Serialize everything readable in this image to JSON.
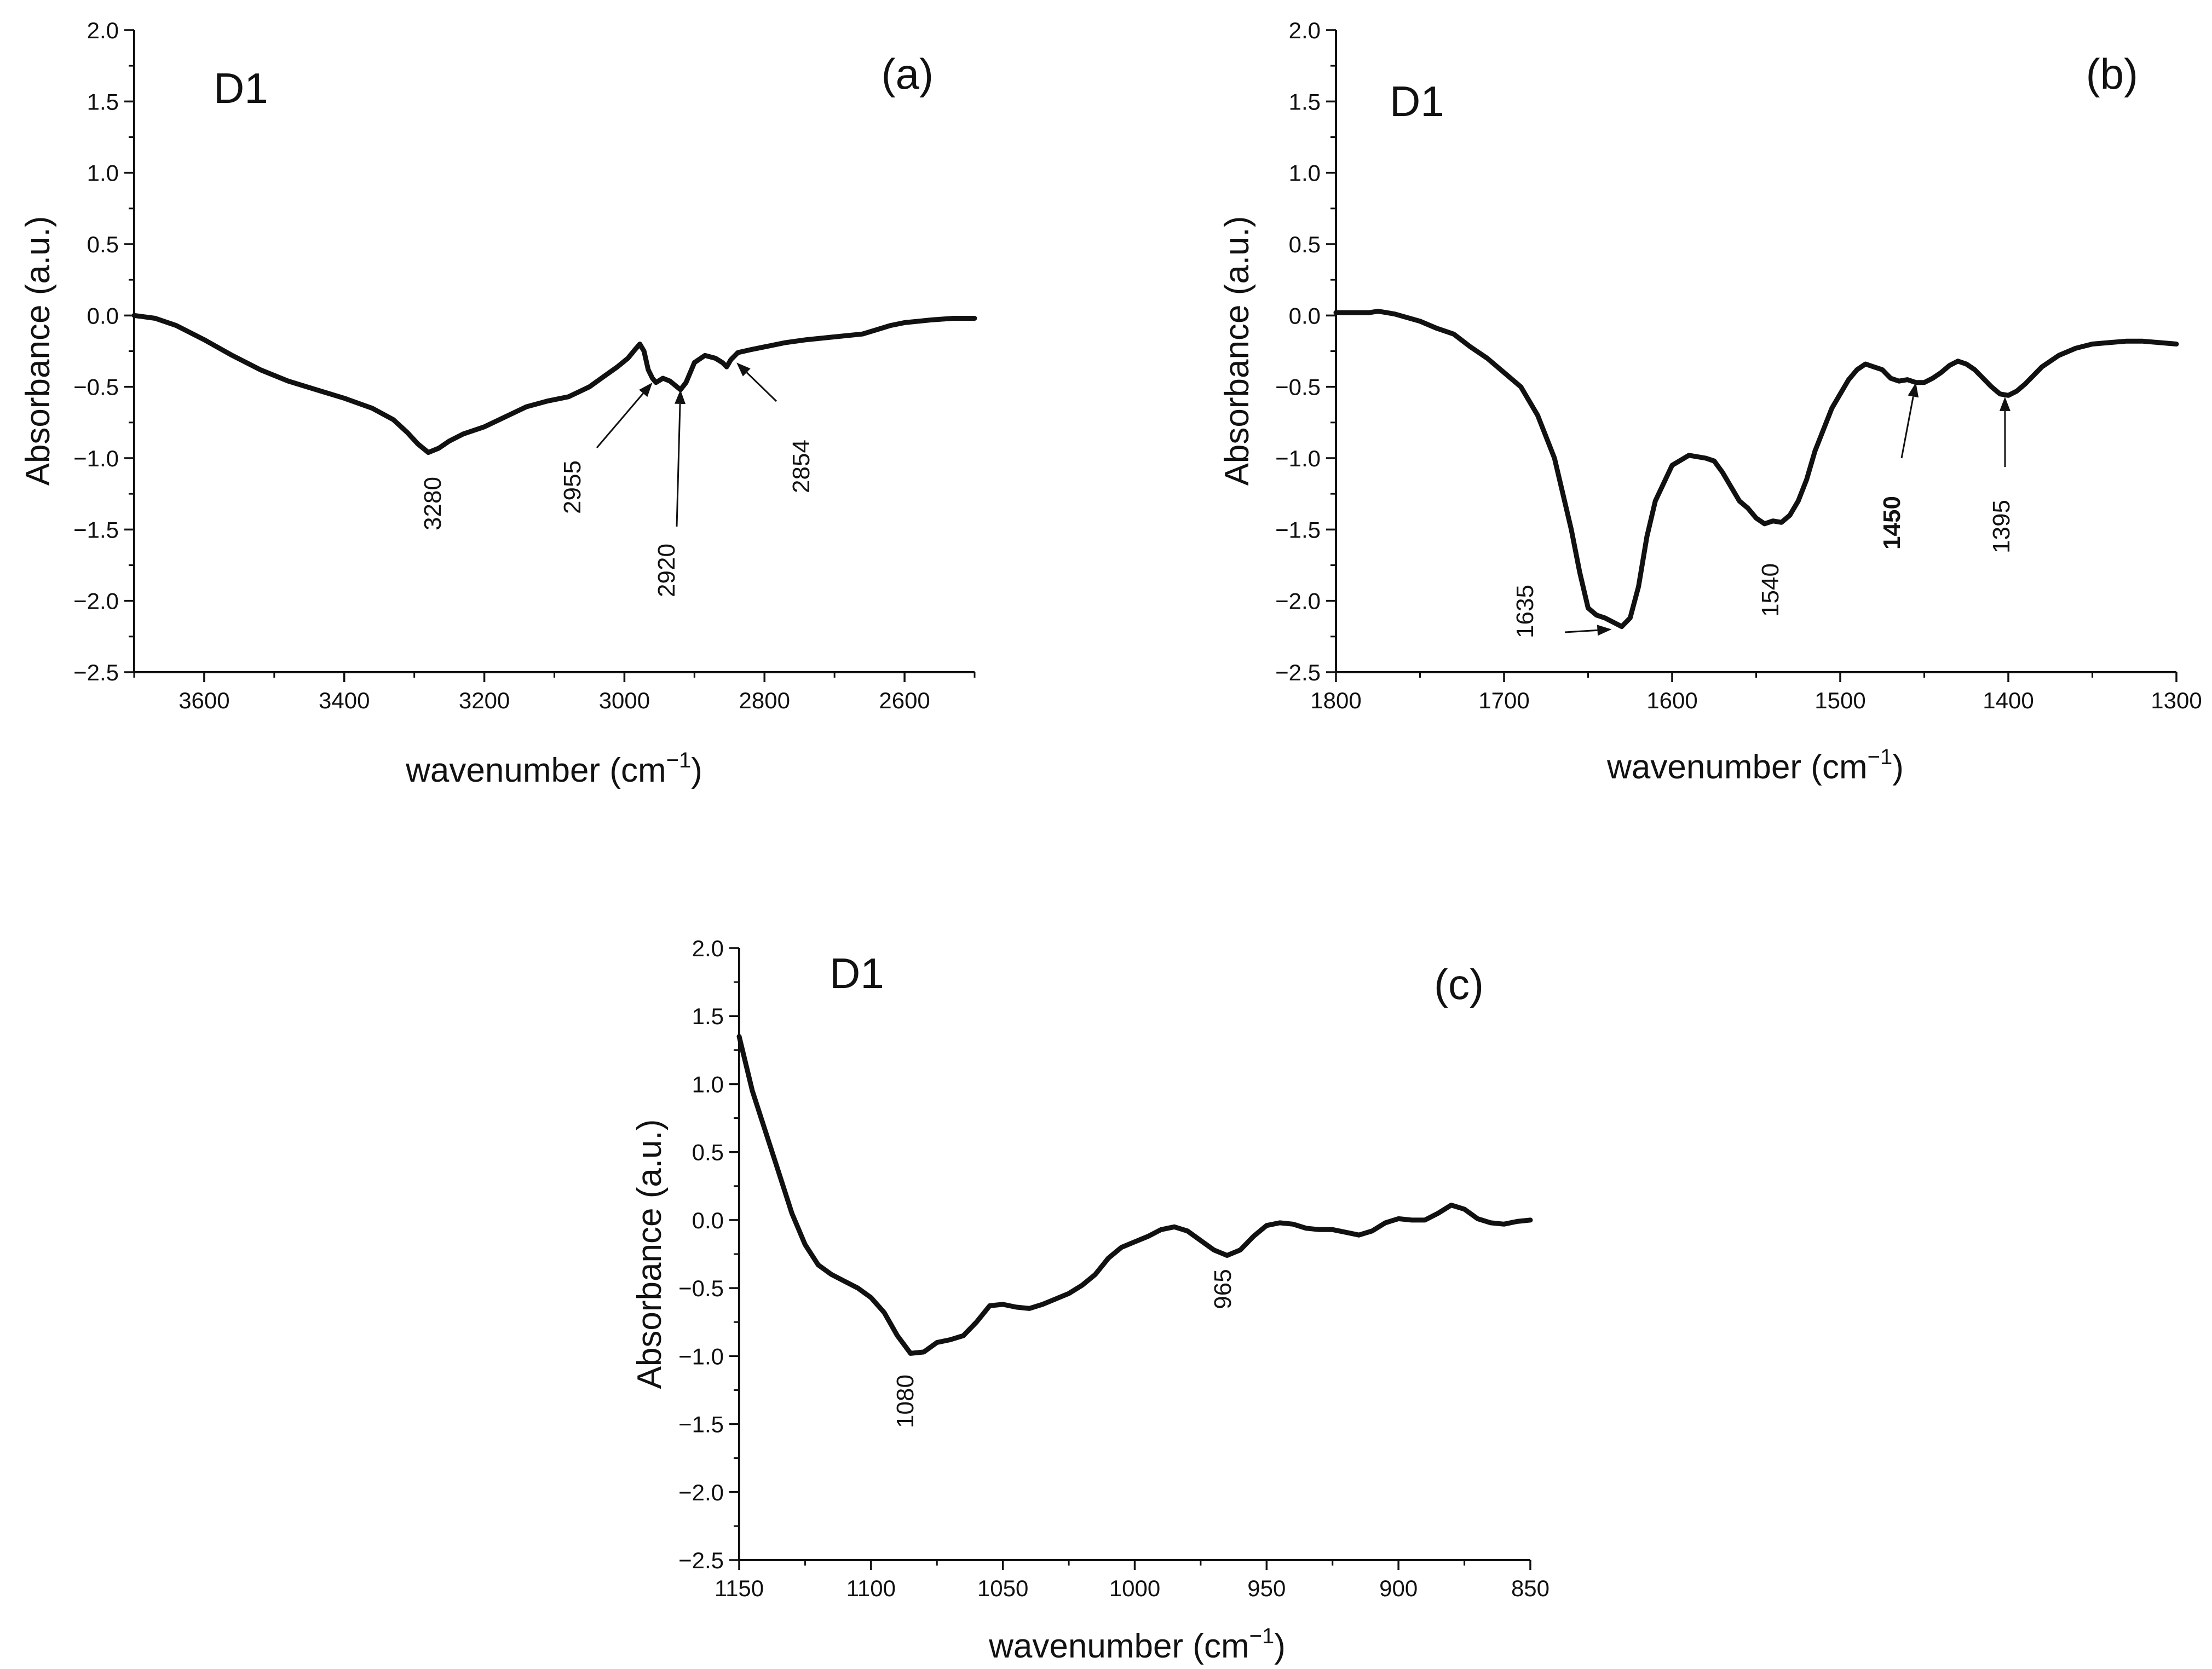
{
  "figure": {
    "ylabel": "Absorbance (a.u.)",
    "xlabel_base": "wavenumber (cm",
    "xlabel_sup": "−1",
    "xlabel_end": ")"
  },
  "chart_data": [
    {
      "type": "line",
      "id": "a",
      "title": "D1",
      "panel_label": "(a)",
      "xlim": [
        3700,
        2500
      ],
      "ylim": [
        -2.5,
        2.0
      ],
      "xticks": [
        3600,
        3400,
        3200,
        3000,
        2800,
        2600
      ],
      "xtick_labels": [
        "3600",
        "3400",
        "3200",
        "3000",
        "2800",
        "2600"
      ],
      "yticks": [
        -2.5,
        -2.0,
        -1.5,
        -1.0,
        -0.5,
        0.0,
        0.5,
        1.0,
        1.5,
        2.0
      ],
      "ytick_labels": [
        "−2.5",
        "−2.0",
        "−1.5",
        "−1.0",
        "−0.5",
        "0.0",
        "0.5",
        "1.0",
        "1.5",
        "2.0"
      ],
      "series": [
        {
          "name": "D1",
          "x": [
            3700,
            3670,
            3640,
            3600,
            3560,
            3520,
            3480,
            3440,
            3400,
            3360,
            3330,
            3310,
            3295,
            3280,
            3265,
            3250,
            3230,
            3200,
            3170,
            3140,
            3110,
            3080,
            3050,
            3030,
            3010,
            2995,
            2985,
            2978,
            2972,
            2966,
            2960,
            2955,
            2945,
            2935,
            2925,
            2920,
            2912,
            2900,
            2885,
            2870,
            2860,
            2854,
            2848,
            2838,
            2820,
            2800,
            2770,
            2740,
            2700,
            2660,
            2640,
            2620,
            2600,
            2580,
            2560,
            2530,
            2500
          ],
          "y": [
            0.0,
            -0.02,
            -0.07,
            -0.17,
            -0.28,
            -0.38,
            -0.46,
            -0.52,
            -0.58,
            -0.65,
            -0.73,
            -0.82,
            -0.9,
            -0.96,
            -0.93,
            -0.88,
            -0.83,
            -0.78,
            -0.71,
            -0.64,
            -0.6,
            -0.57,
            -0.5,
            -0.43,
            -0.36,
            -0.3,
            -0.24,
            -0.2,
            -0.25,
            -0.38,
            -0.44,
            -0.47,
            -0.44,
            -0.46,
            -0.5,
            -0.52,
            -0.47,
            -0.33,
            -0.28,
            -0.3,
            -0.33,
            -0.36,
            -0.31,
            -0.26,
            -0.24,
            -0.22,
            -0.19,
            -0.17,
            -0.15,
            -0.13,
            -0.1,
            -0.07,
            -0.05,
            -0.04,
            -0.03,
            -0.02,
            -0.02
          ]
        }
      ],
      "annotations": [
        {
          "label": "3280",
          "x": 3280,
          "y": -0.96,
          "arrow": false,
          "bold": false
        },
        {
          "label": "2955",
          "x": 2960,
          "y": -0.47,
          "arrow": true,
          "bold": false
        },
        {
          "label": "2920",
          "x": 2920,
          "y": -0.52,
          "arrow": true,
          "bold": false
        },
        {
          "label": "2854",
          "x": 2840,
          "y": -0.33,
          "arrow": true,
          "bold": false
        }
      ]
    },
    {
      "type": "line",
      "id": "b",
      "title": "D1",
      "panel_label": "(b)",
      "xlim": [
        1800,
        1300
      ],
      "ylim": [
        -2.5,
        2.0
      ],
      "xticks": [
        1800,
        1700,
        1600,
        1500,
        1400,
        1300
      ],
      "xtick_labels": [
        "1800",
        "1700",
        "1600",
        "1500",
        "1400",
        "1300"
      ],
      "yticks": [
        -2.5,
        -2.0,
        -1.5,
        -1.0,
        -0.5,
        0.0,
        0.5,
        1.0,
        1.5,
        2.0
      ],
      "ytick_labels": [
        "−2.5",
        "−2.0",
        "−1.5",
        "−1.0",
        "−0.5",
        "0.0",
        "0.5",
        "1.0",
        "1.5",
        "2.0"
      ],
      "series": [
        {
          "name": "D1",
          "x": [
            1800,
            1790,
            1780,
            1775,
            1765,
            1750,
            1740,
            1730,
            1720,
            1710,
            1700,
            1690,
            1680,
            1670,
            1660,
            1655,
            1650,
            1645,
            1640,
            1635,
            1630,
            1625,
            1620,
            1615,
            1610,
            1600,
            1590,
            1580,
            1575,
            1570,
            1565,
            1560,
            1555,
            1550,
            1545,
            1540,
            1535,
            1530,
            1525,
            1520,
            1515,
            1510,
            1505,
            1500,
            1495,
            1490,
            1485,
            1480,
            1475,
            1470,
            1465,
            1460,
            1455,
            1450,
            1445,
            1440,
            1435,
            1430,
            1425,
            1420,
            1415,
            1410,
            1405,
            1400,
            1395,
            1390,
            1385,
            1380,
            1370,
            1360,
            1350,
            1340,
            1330,
            1320,
            1310,
            1300
          ],
          "y": [
            0.02,
            0.02,
            0.02,
            0.03,
            0.01,
            -0.04,
            -0.09,
            -0.13,
            -0.22,
            -0.3,
            -0.4,
            -0.5,
            -0.7,
            -1.0,
            -1.5,
            -1.8,
            -2.05,
            -2.1,
            -2.12,
            -2.15,
            -2.18,
            -2.12,
            -1.9,
            -1.55,
            -1.3,
            -1.05,
            -0.98,
            -1.0,
            -1.02,
            -1.1,
            -1.2,
            -1.3,
            -1.35,
            -1.42,
            -1.46,
            -1.44,
            -1.45,
            -1.4,
            -1.3,
            -1.15,
            -0.95,
            -0.8,
            -0.65,
            -0.55,
            -0.45,
            -0.38,
            -0.34,
            -0.36,
            -0.38,
            -0.44,
            -0.46,
            -0.45,
            -0.47,
            -0.47,
            -0.44,
            -0.4,
            -0.35,
            -0.32,
            -0.34,
            -0.38,
            -0.44,
            -0.5,
            -0.55,
            -0.56,
            -0.53,
            -0.48,
            -0.42,
            -0.36,
            -0.28,
            -0.23,
            -0.2,
            -0.19,
            -0.18,
            -0.18,
            -0.19,
            -0.2
          ]
        }
      ],
      "annotations": [
        {
          "label": "1635",
          "x": 1636,
          "y": -2.2,
          "arrow": true,
          "bold": false
        },
        {
          "label": "1540",
          "x": 1545,
          "y": -1.46,
          "arrow": false,
          "bold": false
        },
        {
          "label": "1450",
          "x": 1455,
          "y": -0.47,
          "arrow": true,
          "bold": true
        },
        {
          "label": "1395",
          "x": 1402,
          "y": -0.57,
          "arrow": true,
          "bold": false
        }
      ]
    },
    {
      "type": "line",
      "id": "c",
      "title": "D1",
      "panel_label": "(c)",
      "xlim": [
        1150,
        850
      ],
      "ylim": [
        -2.5,
        2.0
      ],
      "xticks": [
        1150,
        1100,
        1050,
        1000,
        950,
        900,
        850
      ],
      "xtick_labels": [
        "1150",
        "1100",
        "1050",
        "1000",
        "950",
        "900",
        "850"
      ],
      "yticks": [
        -2.5,
        -2.0,
        -1.5,
        -1.0,
        -0.5,
        0.0,
        0.5,
        1.0,
        1.5,
        2.0
      ],
      "ytick_labels": [
        "−2.5",
        "−2.0",
        "−1.5",
        "−1.0",
        "−0.5",
        "0.0",
        "0.5",
        "1.0",
        "1.5",
        "2.0"
      ],
      "series": [
        {
          "name": "D1",
          "x": [
            1150,
            1145,
            1140,
            1135,
            1130,
            1125,
            1120,
            1115,
            1110,
            1105,
            1100,
            1095,
            1090,
            1085,
            1080,
            1075,
            1070,
            1065,
            1060,
            1055,
            1050,
            1045,
            1040,
            1035,
            1030,
            1025,
            1020,
            1015,
            1010,
            1005,
            1000,
            995,
            990,
            985,
            980,
            975,
            970,
            965,
            960,
            955,
            950,
            945,
            940,
            935,
            930,
            925,
            920,
            915,
            910,
            905,
            900,
            895,
            890,
            885,
            880,
            875,
            870,
            865,
            860,
            855,
            850
          ],
          "y": [
            1.35,
            0.95,
            0.65,
            0.35,
            0.05,
            -0.18,
            -0.33,
            -0.4,
            -0.45,
            -0.5,
            -0.57,
            -0.68,
            -0.85,
            -0.98,
            -0.97,
            -0.9,
            -0.88,
            -0.85,
            -0.75,
            -0.63,
            -0.62,
            -0.64,
            -0.65,
            -0.62,
            -0.58,
            -0.54,
            -0.48,
            -0.4,
            -0.28,
            -0.2,
            -0.16,
            -0.12,
            -0.07,
            -0.05,
            -0.08,
            -0.15,
            -0.22,
            -0.26,
            -0.22,
            -0.12,
            -0.04,
            -0.02,
            -0.03,
            -0.06,
            -0.07,
            -0.07,
            -0.09,
            -0.11,
            -0.08,
            -0.02,
            0.01,
            0.0,
            0.0,
            0.05,
            0.11,
            0.08,
            0.01,
            -0.02,
            -0.03,
            -0.01,
            0.0
          ]
        }
      ],
      "annotations": [
        {
          "label": "1080",
          "x": 1080,
          "y": -0.98,
          "arrow": false,
          "bold": false
        },
        {
          "label": "965",
          "x": 965,
          "y": -0.26,
          "arrow": false,
          "bold": false
        }
      ]
    }
  ]
}
